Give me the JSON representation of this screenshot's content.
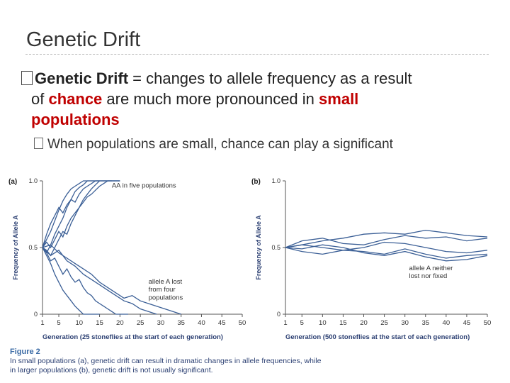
{
  "slide": {
    "title": "Genetic Drift",
    "bullet": {
      "term": "Genetic Drift",
      "text1": " = changes to allele frequency as a result",
      "text2": "of ",
      "chance": "chance",
      "text3": " are much more pronounced in ",
      "small": "small",
      "populations": "populations"
    },
    "sub_bullet": "When populations are small, chance can play a significant"
  },
  "figure": {
    "caption_label": "Figure 2",
    "caption_line1": "In small populations (a), genetic drift can result in dramatic changes in allele frequencies, while",
    "caption_line2": "in larger populations (b), genetic drift is not usually significant."
  },
  "colors": {
    "line": "#3b5f96",
    "accent_red": "#c00000",
    "axis": "#555555"
  },
  "chart_data": [
    {
      "type": "line",
      "panel_label": "(a)",
      "ylabel": "Frequency of Allele A",
      "xlabel": "Generation (25 stoneflies at the start of each generation)",
      "yticks": [
        "0",
        "0.5",
        "1.0"
      ],
      "xticks": [
        "1",
        "5",
        "10",
        "15",
        "20",
        "25",
        "30",
        "35",
        "40",
        "45",
        "50"
      ],
      "xlim": [
        1,
        50
      ],
      "ylim": [
        0,
        1
      ],
      "annotations": [
        {
          "text": "AA in five populations",
          "x": 18,
          "y": 0.95
        },
        {
          "text": "allele A lost",
          "x": 27,
          "y": 0.23
        },
        {
          "text": "from four",
          "x": 27,
          "y": 0.17
        },
        {
          "text": "populations",
          "x": 27,
          "y": 0.11
        }
      ],
      "series": [
        {
          "x": [
            1,
            2,
            3,
            4,
            5,
            6,
            7,
            8,
            9,
            10,
            11,
            12,
            13,
            14,
            15
          ],
          "y": [
            0.5,
            0.56,
            0.62,
            0.7,
            0.78,
            0.85,
            0.9,
            0.94,
            0.96,
            0.98,
            1,
            1,
            1,
            1,
            1
          ]
        },
        {
          "x": [
            1,
            2,
            3,
            4,
            5,
            6,
            7,
            8,
            9,
            10,
            11,
            12,
            13,
            14,
            15,
            16,
            17,
            18
          ],
          "y": [
            0.5,
            0.46,
            0.52,
            0.6,
            0.66,
            0.72,
            0.8,
            0.86,
            0.84,
            0.9,
            0.94,
            0.96,
            0.98,
            1,
            1,
            1,
            1,
            1
          ]
        },
        {
          "x": [
            1,
            2,
            3,
            4,
            5,
            6,
            7,
            8,
            9,
            10,
            11,
            12,
            13,
            14,
            15,
            16,
            17,
            18,
            19,
            20
          ],
          "y": [
            0.5,
            0.54,
            0.5,
            0.56,
            0.62,
            0.58,
            0.66,
            0.72,
            0.76,
            0.8,
            0.84,
            0.88,
            0.9,
            0.93,
            0.96,
            0.98,
            1,
            1,
            1,
            1
          ]
        },
        {
          "x": [
            1,
            2,
            3,
            4,
            5,
            6,
            7,
            8,
            9,
            10,
            11,
            12,
            13,
            14,
            15,
            16,
            17,
            18,
            19,
            20
          ],
          "y": [
            0.5,
            0.6,
            0.68,
            0.74,
            0.8,
            0.76,
            0.82,
            0.86,
            0.92,
            0.95,
            0.97,
            1,
            1,
            1,
            1,
            1,
            1,
            1,
            1,
            1
          ]
        },
        {
          "x": [
            1,
            2,
            3,
            4,
            5,
            6,
            7,
            8,
            9,
            10,
            11,
            12,
            13,
            14,
            15,
            16,
            17,
            18,
            19,
            20
          ],
          "y": [
            0.5,
            0.48,
            0.44,
            0.5,
            0.56,
            0.62,
            0.6,
            0.68,
            0.74,
            0.8,
            0.86,
            0.9,
            0.94,
            0.97,
            1,
            1,
            1,
            1,
            1,
            1
          ]
        },
        {
          "x": [
            1,
            2,
            3,
            4,
            5,
            6,
            7,
            8,
            9,
            10,
            11,
            12,
            13,
            14,
            15
          ],
          "y": [
            0.5,
            0.44,
            0.38,
            0.3,
            0.24,
            0.18,
            0.14,
            0.1,
            0.06,
            0.03,
            0,
            0,
            0,
            0,
            0
          ]
        },
        {
          "x": [
            1,
            2,
            3,
            4,
            5,
            6,
            7,
            8,
            9,
            10,
            11,
            12,
            13,
            14,
            15,
            16,
            17,
            18,
            19,
            20,
            21,
            22
          ],
          "y": [
            0.5,
            0.46,
            0.4,
            0.42,
            0.36,
            0.3,
            0.34,
            0.28,
            0.24,
            0.26,
            0.2,
            0.16,
            0.14,
            0.1,
            0.08,
            0.06,
            0.04,
            0.02,
            0,
            0,
            0,
            0
          ]
        },
        {
          "x": [
            1,
            3,
            5,
            7,
            9,
            11,
            13,
            15,
            17,
            19,
            21,
            23,
            25,
            27,
            29
          ],
          "y": [
            0.5,
            0.44,
            0.48,
            0.4,
            0.36,
            0.3,
            0.26,
            0.22,
            0.18,
            0.14,
            0.1,
            0.08,
            0.04,
            0.02,
            0
          ]
        },
        {
          "x": [
            1,
            3,
            5,
            7,
            9,
            11,
            13,
            15,
            17,
            19,
            21,
            23,
            25,
            27,
            29,
            31,
            33,
            35
          ],
          "y": [
            0.5,
            0.52,
            0.46,
            0.42,
            0.38,
            0.34,
            0.3,
            0.24,
            0.2,
            0.16,
            0.12,
            0.14,
            0.1,
            0.08,
            0.06,
            0.04,
            0.02,
            0
          ]
        }
      ]
    },
    {
      "type": "line",
      "panel_label": "(b)",
      "ylabel": "Frequency of Allele A",
      "xlabel": "Generation (500 stoneflies at the start of each generation)",
      "yticks": [
        "0",
        "0.5",
        "1.0"
      ],
      "xticks": [
        "1",
        "5",
        "10",
        "15",
        "20",
        "25",
        "30",
        "35",
        "40",
        "45",
        "50"
      ],
      "xlim": [
        1,
        50
      ],
      "ylim": [
        0,
        1
      ],
      "annotations": [
        {
          "text": "allele A neither",
          "x": 31,
          "y": 0.33
        },
        {
          "text": "lost nor fixed",
          "x": 31,
          "y": 0.27
        }
      ],
      "series": [
        {
          "x": [
            1,
            5,
            10,
            15,
            20,
            25,
            30,
            35,
            40,
            45,
            50
          ],
          "y": [
            0.5,
            0.52,
            0.55,
            0.57,
            0.6,
            0.61,
            0.6,
            0.63,
            0.61,
            0.59,
            0.58
          ]
        },
        {
          "x": [
            1,
            5,
            10,
            15,
            20,
            25,
            30,
            35,
            40,
            45,
            50
          ],
          "y": [
            0.5,
            0.55,
            0.57,
            0.53,
            0.52,
            0.56,
            0.59,
            0.57,
            0.58,
            0.55,
            0.57
          ]
        },
        {
          "x": [
            1,
            5,
            10,
            15,
            20,
            25,
            30,
            35,
            40,
            45,
            50
          ],
          "y": [
            0.5,
            0.52,
            0.5,
            0.48,
            0.5,
            0.54,
            0.53,
            0.5,
            0.47,
            0.46,
            0.48
          ]
        },
        {
          "x": [
            1,
            5,
            10,
            15,
            20,
            25,
            30,
            35,
            40,
            45,
            50
          ],
          "y": [
            0.5,
            0.47,
            0.45,
            0.48,
            0.47,
            0.45,
            0.49,
            0.45,
            0.42,
            0.44,
            0.45
          ]
        },
        {
          "x": [
            1,
            5,
            10,
            15,
            20,
            25,
            30,
            35,
            40,
            45,
            50
          ],
          "y": [
            0.5,
            0.49,
            0.52,
            0.5,
            0.46,
            0.44,
            0.47,
            0.43,
            0.4,
            0.41,
            0.44
          ]
        }
      ]
    }
  ]
}
